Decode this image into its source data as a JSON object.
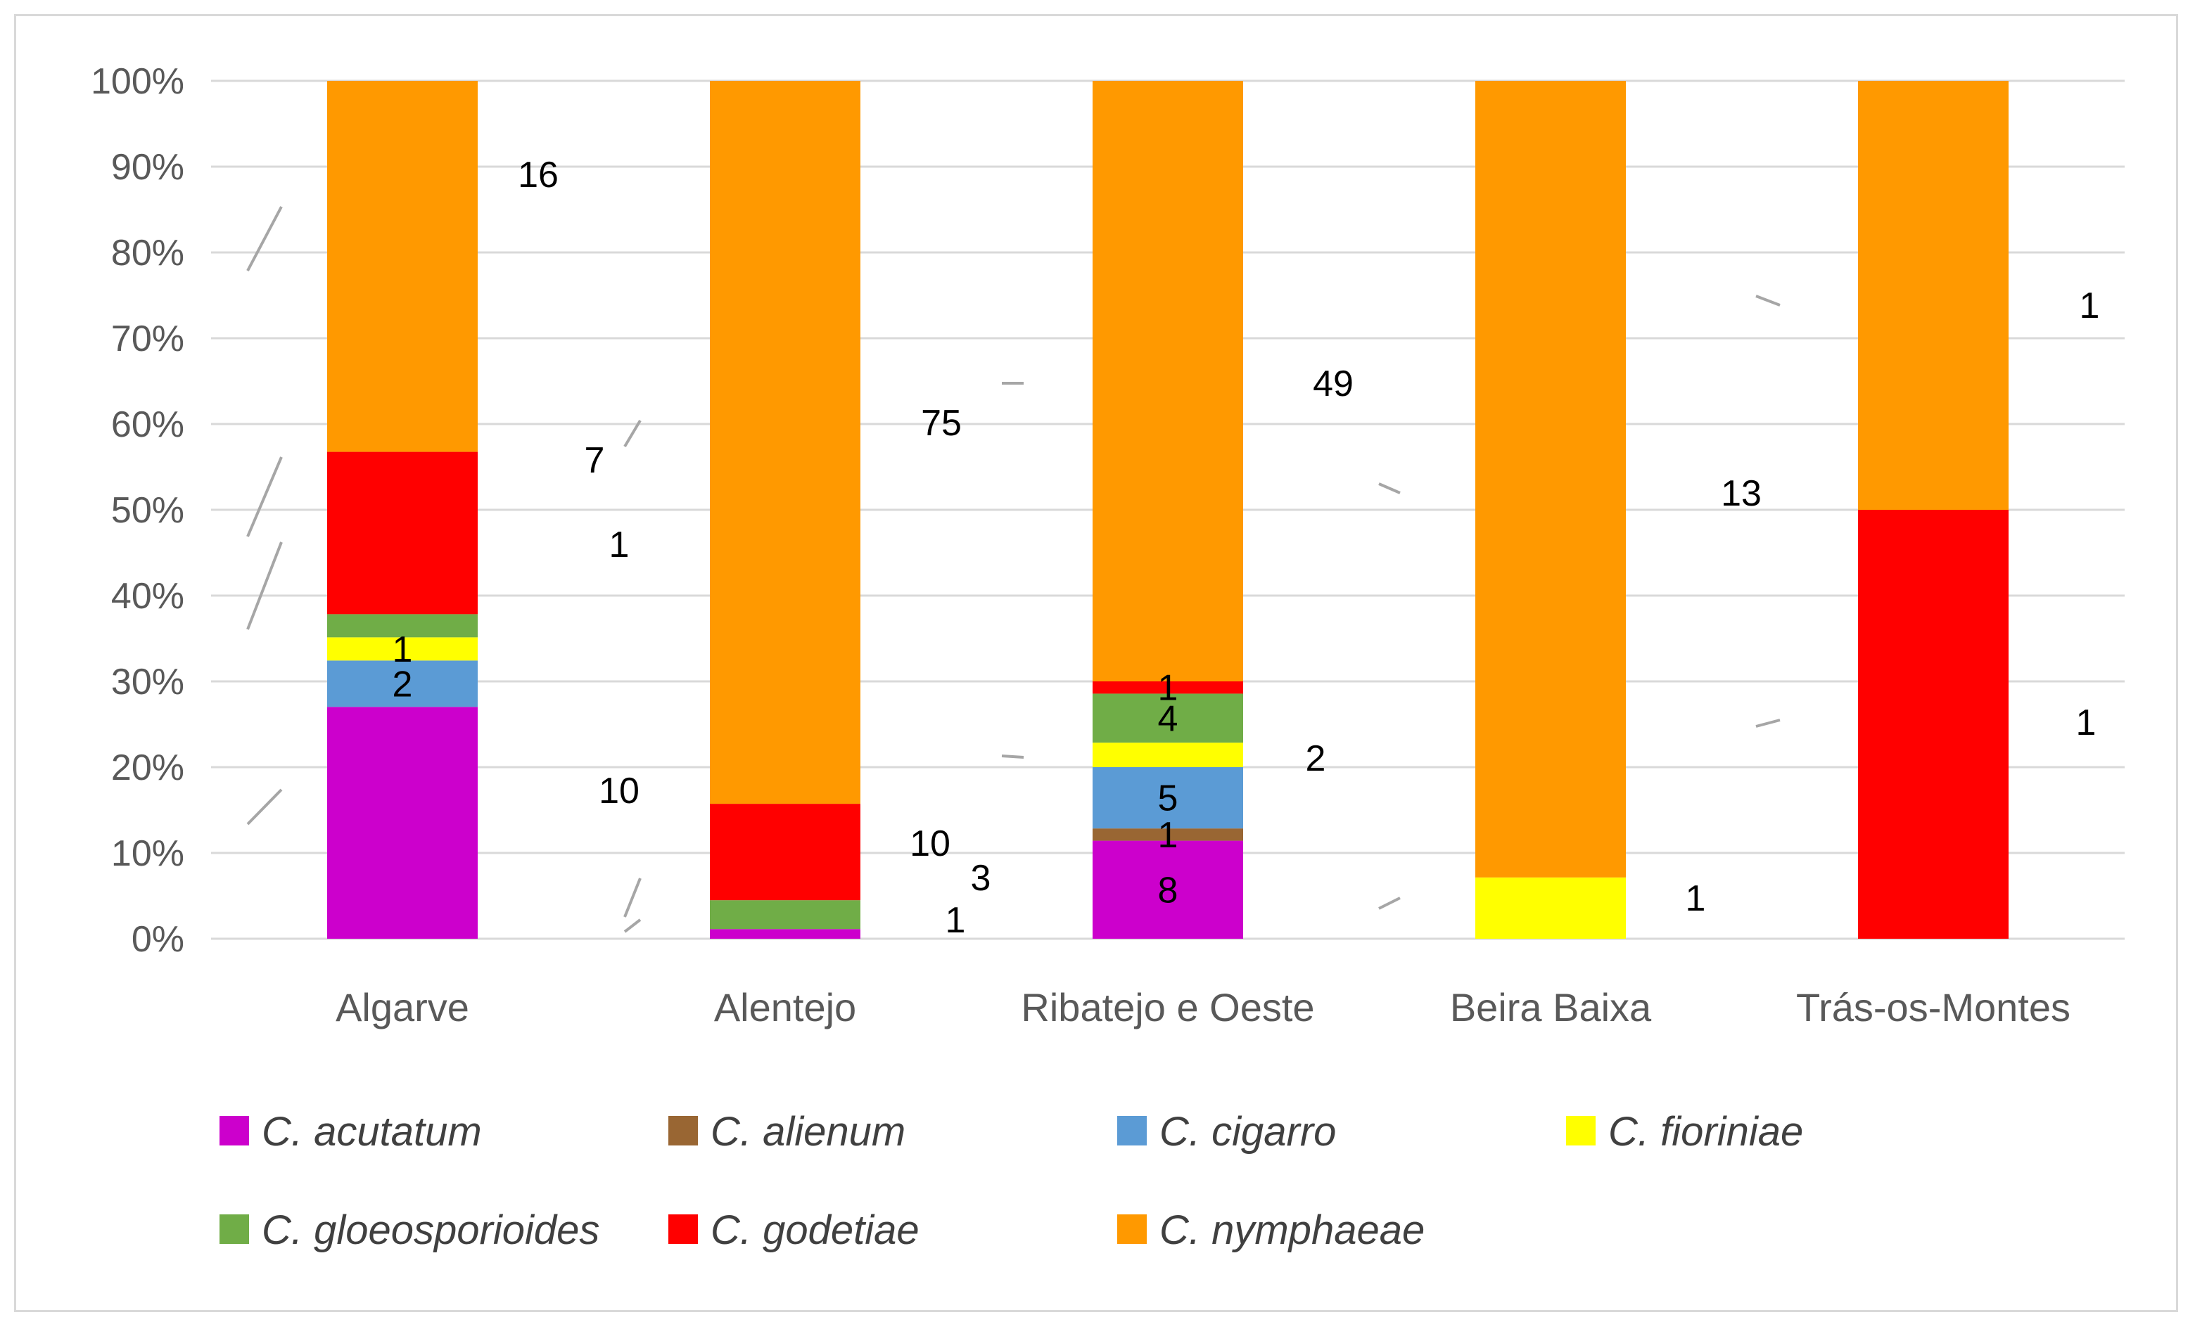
{
  "chart_data": {
    "type": "bar",
    "stacked": "percent",
    "categories": [
      "Algarve",
      "Alentejo",
      "Ribatejo e Oeste",
      "Beira Baixa",
      "Trás-os-Montes"
    ],
    "series": [
      {
        "name": "C. acutatum",
        "color": "#cc00cc",
        "values": [
          10,
          1,
          8,
          0,
          0
        ]
      },
      {
        "name": "C. alienum",
        "color": "#996633",
        "values": [
          0,
          0,
          1,
          0,
          0
        ]
      },
      {
        "name": "C. cigarro",
        "color": "#5b9bd5",
        "values": [
          2,
          0,
          5,
          0,
          0
        ]
      },
      {
        "name": "C. fioriniae",
        "color": "#ffff00",
        "values": [
          1,
          0,
          2,
          1,
          0
        ]
      },
      {
        "name": "C. gloeosporioides",
        "color": "#70ad47",
        "values": [
          1,
          3,
          4,
          0,
          0
        ]
      },
      {
        "name": "C. godetiae",
        "color": "#ff0000",
        "values": [
          7,
          10,
          1,
          0,
          1
        ]
      },
      {
        "name": "C. nymphaeae",
        "color": "#ff9900",
        "values": [
          16,
          75,
          49,
          13,
          1
        ]
      }
    ],
    "y_ticks": [
      "0%",
      "10%",
      "20%",
      "30%",
      "40%",
      "50%",
      "60%",
      "70%",
      "80%",
      "90%",
      "100%"
    ],
    "ylim": [
      0,
      100
    ],
    "grid": true,
    "legend_position": "bottom",
    "title": "",
    "xlabel": "",
    "ylabel": ""
  }
}
